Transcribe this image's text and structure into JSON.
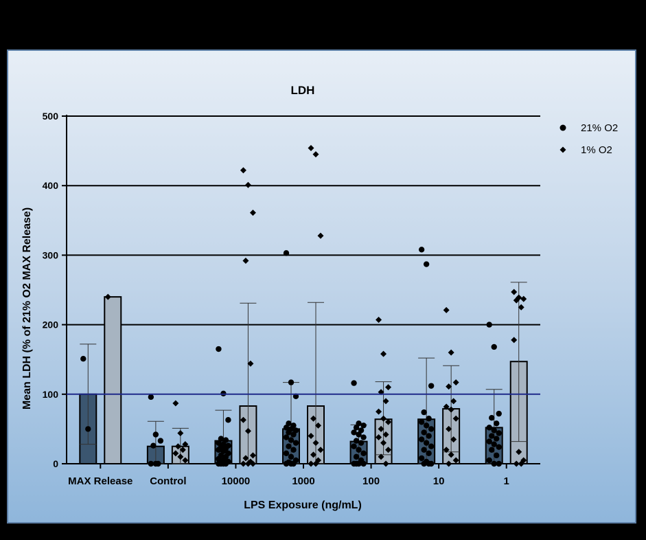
{
  "chart_data": {
    "type": "bar",
    "title": "LDH",
    "xlabel": "LPS Exposure (ng/mL)",
    "ylabel": "Mean LDH (% of 21% O2 MAX Release)",
    "ylim": [
      0,
      500
    ],
    "yticks": [
      "0",
      "100",
      "200",
      "300",
      "400",
      "500"
    ],
    "grid": "horizontal at 200, 300, 400, 500",
    "reference_line": {
      "y": 100,
      "color": "#1f2a8a"
    },
    "legend_position": "top-right",
    "categories": [
      "MAX Release",
      "Control",
      "10000",
      "1000",
      "100",
      "10",
      "1"
    ],
    "series": [
      {
        "name": "21% O2",
        "marker": "circle",
        "bar_color": "#3b5670",
        "values": [
          100,
          25,
          33,
          50,
          32,
          64,
          52
        ],
        "error_bars": [
          [
            28,
            172
          ],
          [
            0,
            61
          ],
          [
            0,
            77
          ],
          [
            0,
            117
          ],
          [
            0,
            56
          ],
          [
            0,
            152
          ],
          [
            0,
            107
          ]
        ],
        "points": [
          [
            151,
            50
          ],
          [
            96,
            42,
            33,
            26,
            0,
            0,
            0
          ],
          [
            165,
            101,
            63,
            36,
            34,
            30,
            28,
            26,
            24,
            22,
            20,
            18,
            15,
            12,
            10,
            7,
            5,
            3,
            0,
            0,
            0,
            0
          ],
          [
            303,
            117,
            97,
            58,
            55,
            52,
            50,
            48,
            45,
            42,
            38,
            34,
            30,
            25,
            20,
            15,
            10,
            5,
            2,
            0,
            0,
            0
          ],
          [
            116,
            58,
            55,
            52,
            48,
            45,
            42,
            38,
            33,
            30,
            25,
            20,
            15,
            10,
            5,
            0,
            0,
            0,
            0
          ],
          [
            308,
            287,
            112,
            74,
            65,
            60,
            55,
            50,
            45,
            40,
            35,
            30,
            25,
            20,
            15,
            8,
            3,
            0,
            0,
            0
          ],
          [
            200,
            168,
            72,
            66,
            58,
            52,
            48,
            44,
            40,
            36,
            32,
            28,
            24,
            20,
            12,
            5,
            0,
            0
          ]
        ]
      },
      {
        "name": "1% O2",
        "marker": "diamond",
        "bar_color": "#a7b4c1",
        "values": [
          240,
          25,
          83,
          83,
          64,
          79,
          147
        ],
        "error_bars": [
          [
            240,
            240
          ],
          [
            0,
            51
          ],
          [
            0,
            231
          ],
          [
            0,
            232
          ],
          [
            13,
            118
          ],
          [
            17,
            141
          ],
          [
            32,
            261
          ]
        ],
        "points": [
          [
            240
          ],
          [
            87,
            44,
            28,
            25,
            20,
            15,
            10,
            5
          ],
          [
            422,
            401,
            361,
            292,
            144,
            63,
            47,
            12,
            8,
            3,
            0,
            0,
            0
          ],
          [
            454,
            445,
            328,
            65,
            55,
            40,
            30,
            20,
            13,
            5,
            0,
            0
          ],
          [
            207,
            158,
            110,
            103,
            90,
            75,
            65,
            60,
            50,
            42,
            38,
            30,
            20,
            10,
            0
          ],
          [
            221,
            160,
            117,
            111,
            90,
            82,
            78,
            65,
            50,
            35,
            20,
            13,
            5,
            0
          ],
          [
            247,
            239,
            237,
            235,
            225,
            178,
            17,
            5,
            0,
            0
          ]
        ]
      }
    ]
  }
}
